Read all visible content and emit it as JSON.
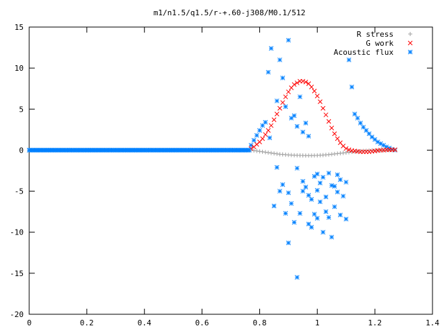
{
  "chart_data": {
    "type": "scatter",
    "title": "m1/n1.5/q1.5/r-+.60-j308/M0.1/512",
    "xlabel": "",
    "ylabel": "",
    "xlim": [
      0,
      1.4
    ],
    "ylim": [
      -20,
      15
    ],
    "xticks": [
      "0",
      "0.2",
      "0.4",
      "0.6",
      "0.8",
      "1",
      "1.2",
      "1.4"
    ],
    "yticks": [
      "15",
      "10",
      "5",
      "0",
      "-5",
      "-10",
      "-15",
      "-20"
    ],
    "xtick_values": [
      0,
      0.2,
      0.4,
      0.6,
      0.8,
      1.0,
      1.2,
      1.4
    ],
    "ytick_values": [
      15,
      10,
      5,
      0,
      -5,
      -10,
      -15,
      -20
    ],
    "grid": false,
    "legend_position": "top-right",
    "series": [
      {
        "name": "R stress",
        "marker": "+",
        "color": "#a0a0a0",
        "x": [
          0.77,
          0.78,
          0.79,
          0.8,
          0.81,
          0.82,
          0.83,
          0.84,
          0.85,
          0.86,
          0.87,
          0.88,
          0.89,
          0.9,
          0.91,
          0.92,
          0.93,
          0.94,
          0.95,
          0.96,
          0.97,
          0.98,
          0.99,
          1.0,
          1.01,
          1.02,
          1.03,
          1.04,
          1.05,
          1.06,
          1.07,
          1.08,
          1.09,
          1.1,
          1.11,
          1.12,
          1.13,
          1.14,
          1.15,
          1.16,
          1.17,
          1.18,
          1.19,
          1.2,
          1.21,
          1.22,
          1.23,
          1.24,
          1.25,
          1.26,
          1.27
        ],
        "y": [
          0.0,
          -0.05,
          -0.1,
          -0.15,
          -0.2,
          -0.25,
          -0.3,
          -0.35,
          -0.4,
          -0.45,
          -0.5,
          -0.52,
          -0.55,
          -0.58,
          -0.6,
          -0.62,
          -0.63,
          -0.64,
          -0.65,
          -0.66,
          -0.66,
          -0.66,
          -0.65,
          -0.64,
          -0.62,
          -0.6,
          -0.57,
          -0.54,
          -0.5,
          -0.46,
          -0.42,
          -0.38,
          -0.34,
          -0.3,
          -0.26,
          -0.22,
          -0.18,
          -0.15,
          -0.12,
          -0.1,
          -0.08,
          -0.06,
          -0.05,
          -0.04,
          -0.03,
          -0.02,
          -0.02,
          -0.01,
          -0.01,
          0.0,
          0.0
        ]
      },
      {
        "name": "G work",
        "marker": "x",
        "color": "#ff0000",
        "x": [
          0.77,
          0.78,
          0.79,
          0.8,
          0.81,
          0.82,
          0.83,
          0.84,
          0.85,
          0.86,
          0.87,
          0.88,
          0.89,
          0.9,
          0.91,
          0.92,
          0.93,
          0.94,
          0.95,
          0.96,
          0.97,
          0.98,
          0.99,
          1.0,
          1.01,
          1.02,
          1.03,
          1.04,
          1.05,
          1.06,
          1.07,
          1.08,
          1.09,
          1.1,
          1.11,
          1.12,
          1.13,
          1.14,
          1.15,
          1.16,
          1.17,
          1.18,
          1.19,
          1.2,
          1.21,
          1.22,
          1.23,
          1.24,
          1.25,
          1.26,
          1.27
        ],
        "y": [
          0.2,
          0.4,
          0.7,
          1.0,
          1.4,
          1.9,
          2.4,
          3.0,
          3.7,
          4.4,
          5.1,
          5.8,
          6.5,
          7.1,
          7.6,
          8.0,
          8.2,
          8.4,
          8.4,
          8.3,
          8.1,
          7.7,
          7.2,
          6.6,
          5.9,
          5.1,
          4.3,
          3.5,
          2.7,
          2.0,
          1.4,
          0.9,
          0.5,
          0.2,
          0.05,
          -0.05,
          -0.1,
          -0.15,
          -0.2,
          -0.2,
          -0.2,
          -0.2,
          -0.15,
          -0.1,
          -0.05,
          0.0,
          0.0,
          0.05,
          0.05,
          0.05,
          0.05
        ]
      },
      {
        "name": "Acoustic flux",
        "marker": "*",
        "color": "#0080ff",
        "x": [
          0.0,
          0.02,
          0.04,
          0.06,
          0.08,
          0.1,
          0.12,
          0.14,
          0.16,
          0.18,
          0.2,
          0.22,
          0.24,
          0.26,
          0.28,
          0.3,
          0.32,
          0.34,
          0.36,
          0.38,
          0.4,
          0.42,
          0.44,
          0.46,
          0.48,
          0.5,
          0.52,
          0.54,
          0.56,
          0.58,
          0.6,
          0.62,
          0.64,
          0.66,
          0.68,
          0.7,
          0.72,
          0.74,
          0.76,
          0.77,
          0.78,
          0.79,
          0.8,
          0.81,
          0.82,
          0.83,
          0.835,
          0.84,
          0.85,
          0.86,
          0.86,
          0.87,
          0.87,
          0.88,
          0.88,
          0.89,
          0.89,
          0.9,
          0.9,
          0.9,
          0.91,
          0.91,
          0.92,
          0.92,
          0.93,
          0.93,
          0.93,
          0.94,
          0.94,
          0.95,
          0.95,
          0.95,
          0.96,
          0.96,
          0.97,
          0.97,
          0.97,
          0.98,
          0.98,
          0.99,
          0.99,
          1.0,
          1.0,
          1.0,
          1.01,
          1.01,
          1.02,
          1.02,
          1.03,
          1.03,
          1.04,
          1.04,
          1.05,
          1.05,
          1.06,
          1.06,
          1.07,
          1.07,
          1.08,
          1.08,
          1.09,
          1.1,
          1.1,
          1.11,
          1.12,
          1.13,
          1.14,
          1.15,
          1.16,
          1.17,
          1.18,
          1.19,
          1.2,
          1.21,
          1.22,
          1.23,
          1.24,
          1.25,
          1.26,
          1.27
        ],
        "y": [
          0,
          0,
          0,
          0,
          0,
          0,
          0,
          0,
          0,
          0,
          0,
          0,
          0,
          0,
          0,
          0,
          0,
          0,
          0,
          0,
          0,
          0,
          0,
          0,
          0,
          0,
          0,
          0,
          0,
          0,
          0,
          0,
          0,
          0,
          0,
          0,
          0,
          0,
          0,
          0.6,
          1.2,
          1.8,
          2.4,
          3.0,
          3.4,
          9.5,
          1.5,
          12.4,
          -6.8,
          6.0,
          -2.1,
          11.0,
          -5.0,
          8.8,
          -4.2,
          5.3,
          -7.7,
          13.4,
          -11.3,
          -5.2,
          3.9,
          -6.5,
          4.2,
          -8.8,
          2.9,
          -2.2,
          -15.5,
          6.5,
          -7.7,
          -5.0,
          2.2,
          -3.8,
          3.3,
          -4.5,
          -9.0,
          1.7,
          -5.5,
          -6.0,
          -9.4,
          -3.2,
          -7.8,
          -4.9,
          -8.3,
          -2.9,
          -6.3,
          -4.0,
          -10.0,
          -3.3,
          -7.5,
          -5.7,
          -2.8,
          -8.2,
          -4.3,
          -10.6,
          -6.9,
          -4.4,
          -3.0,
          -5.1,
          -7.9,
          -3.6,
          -5.6,
          -8.4,
          -3.9,
          11.0,
          7.7,
          4.4,
          3.9,
          3.3,
          2.8,
          2.4,
          2.0,
          1.6,
          1.3,
          1.0,
          0.8,
          0.6,
          0.4,
          0.25,
          0.1,
          0.0
        ]
      }
    ]
  }
}
